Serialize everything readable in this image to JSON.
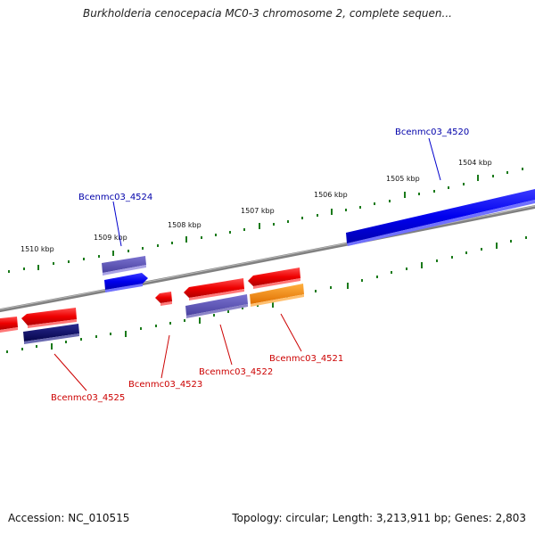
{
  "title": "Burkholderia cenocepacia MC0-3 chromosome 2, complete sequen...",
  "footer": {
    "accession": "Accession: NC_010515",
    "topology": "Topology: circular; Length: 3,213,911 bp; Genes: 2,803"
  },
  "ticks": [
    {
      "label": "1510 kbp"
    },
    {
      "label": "1509 kbp"
    },
    {
      "label": "1508 kbp"
    },
    {
      "label": "1507 kbp"
    },
    {
      "label": "1506 kbp"
    },
    {
      "label": "1505 kbp"
    },
    {
      "label": "1504 kbp"
    }
  ],
  "genes": [
    {
      "name": "Bcenmc03_4520",
      "color": "#0000cc",
      "strand": "forward"
    },
    {
      "name": "Bcenmc03_4521",
      "color": "#cc0000",
      "strand": "reverse"
    },
    {
      "name": "Bcenmc03_4522",
      "color": "#cc0000",
      "strand": "reverse"
    },
    {
      "name": "Bcenmc03_4523",
      "color": "#cc0000",
      "strand": "reverse"
    },
    {
      "name": "Bcenmc03_4524",
      "color": "#0000cc",
      "strand": "forward"
    },
    {
      "name": "Bcenmc03_4525",
      "color": "#cc0000",
      "strand": "reverse"
    }
  ],
  "colors": {
    "backbone": "#777777",
    "tick": "#1a7a1a",
    "forward_gene": "#0000ee",
    "reverse_gene": "#ee0000",
    "forward_cds": "#5a4fb0",
    "reverse_cds": "#433c8c",
    "reverse_cds_dark": "#0a0a6e",
    "rna_orange": "#ff8c00"
  }
}
